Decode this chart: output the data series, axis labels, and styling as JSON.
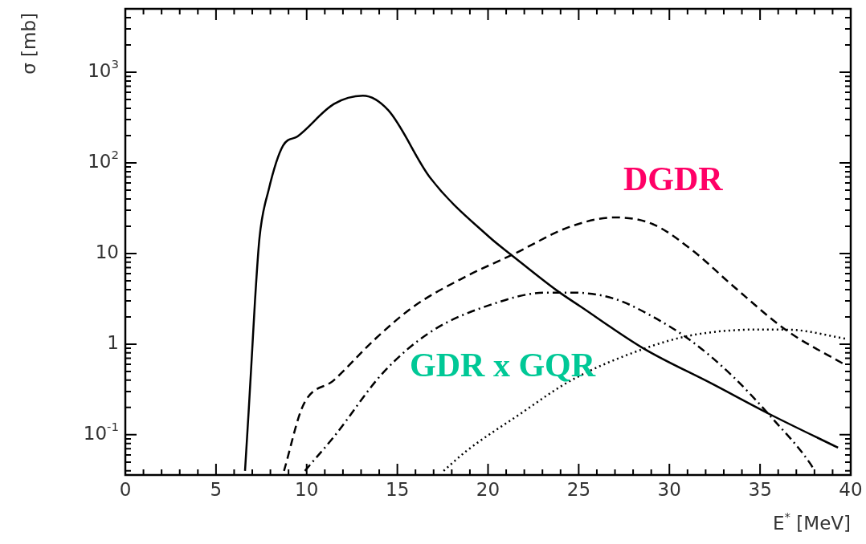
{
  "chart_data": {
    "type": "line",
    "xlabel": "E$^{*}$ [MeV]",
    "ylabel": "σ [mb]",
    "log": "y",
    "legend": false,
    "marker": "none",
    "xlim": [
      0,
      40
    ],
    "xticks": [
      0,
      {
        "value": 1,
        "label": null
      },
      {
        "value": 2,
        "label": null
      },
      {
        "value": 3,
        "label": null
      },
      {
        "value": 4,
        "label": null
      },
      5,
      {
        "value": 6,
        "label": null
      },
      {
        "value": 7,
        "label": null
      },
      {
        "value": 8,
        "label": null
      },
      {
        "value": 9,
        "label": null
      },
      10,
      {
        "value": 11,
        "label": null
      },
      {
        "value": 12,
        "label": null
      },
      {
        "value": 13,
        "label": null
      },
      {
        "value": 14,
        "label": null
      },
      15,
      {
        "value": 16,
        "label": null
      },
      {
        "value": 17,
        "label": null
      },
      {
        "value": 18,
        "label": null
      },
      {
        "value": 19,
        "label": null
      },
      20,
      {
        "value": 21,
        "label": null
      },
      {
        "value": 22,
        "label": null
      },
      {
        "value": 23,
        "label": null
      },
      {
        "value": 24,
        "label": null
      },
      25,
      {
        "value": 26,
        "label": null
      },
      {
        "value": 27,
        "label": null
      },
      {
        "value": 28,
        "label": null
      },
      {
        "value": 29,
        "label": null
      },
      30,
      {
        "value": 31,
        "label": null
      },
      {
        "value": 32,
        "label": null
      },
      {
        "value": 33,
        "label": null
      },
      {
        "value": 34,
        "label": null
      },
      35,
      {
        "value": 36,
        "label": null
      },
      {
        "value": 37,
        "label": null
      },
      {
        "value": 38,
        "label": null
      },
      {
        "value": 39,
        "label": null
      },
      40
    ],
    "ylim": [
      0.036,
      5000
    ],
    "yticks": [
      {
        "value": 0.04,
        "label": null
      },
      {
        "value": 0.05,
        "label": null
      },
      {
        "value": 0.06,
        "label": null
      },
      {
        "value": 0.07,
        "label": null
      },
      {
        "value": 0.08,
        "label": null
      },
      {
        "value": 0.09,
        "label": null
      },
      {
        "value": 0.1,
        "label": "10$^{-1}$"
      },
      {
        "value": 0.2,
        "label": null
      },
      {
        "value": 0.3,
        "label": null
      },
      {
        "value": 0.4,
        "label": null
      },
      {
        "value": 0.5,
        "label": null
      },
      {
        "value": 0.6,
        "label": null
      },
      {
        "value": 0.7,
        "label": null
      },
      {
        "value": 0.8,
        "label": null
      },
      {
        "value": 0.9,
        "label": null
      },
      1,
      {
        "value": 2,
        "label": null
      },
      {
        "value": 3,
        "label": null
      },
      {
        "value": 4,
        "label": null
      },
      {
        "value": 5,
        "label": null
      },
      {
        "value": 6,
        "label": null
      },
      {
        "value": 7,
        "label": null
      },
      {
        "value": 8,
        "label": null
      },
      {
        "value": 9,
        "label": null
      },
      10,
      {
        "value": 20,
        "label": null
      },
      {
        "value": 30,
        "label": null
      },
      {
        "value": 40,
        "label": null
      },
      {
        "value": 50,
        "label": null
      },
      {
        "value": 60,
        "label": null
      },
      {
        "value": 70,
        "label": null
      },
      {
        "value": 80,
        "label": null
      },
      {
        "value": 90,
        "label": null
      },
      {
        "value": 100,
        "label": "10$^{2}$"
      },
      {
        "value": 200,
        "label": null
      },
      {
        "value": 300,
        "label": null
      },
      {
        "value": 400,
        "label": null
      },
      {
        "value": 500,
        "label": null
      },
      {
        "value": 600,
        "label": null
      },
      {
        "value": 700,
        "label": null
      },
      {
        "value": 800,
        "label": null
      },
      {
        "value": 900,
        "label": null
      },
      {
        "value": 1000,
        "label": "10$^{3}$"
      },
      {
        "value": 2000,
        "label": null
      },
      {
        "value": 3000,
        "label": null
      },
      {
        "value": 4000,
        "label": null
      },
      {
        "value": 5000,
        "label": null
      }
    ],
    "series": [
      {
        "color": "#000000",
        "line_style": "solid",
        "x": [
          6.6,
          6.8,
          7.0,
          7.15,
          7.4,
          7.9,
          8.7,
          9.5,
          11.5,
          13.1,
          14.5,
          16.8,
          20.1,
          21.3,
          23.8,
          25.1,
          28.6,
          32.3,
          35.6,
          39.3
        ],
        "values": [
          0.04,
          0.18,
          0.89,
          3.0,
          15,
          50,
          155,
          196,
          445,
          550,
          380,
          69,
          15,
          9.6,
          3.9,
          2.6,
          0.89,
          0.37,
          0.166,
          0.072
        ]
      },
      {
        "color": "#000000",
        "line_style": "dashed",
        "x": [
          8.75,
          9.8,
          11.5,
          13.8,
          15.9,
          18.8,
          21.3,
          24.6,
          27.0,
          29.1,
          31.3,
          33.5,
          36.5,
          39.7
        ],
        "values": [
          0.04,
          0.21,
          0.4,
          1.15,
          2.6,
          5.6,
          9.6,
          20,
          25,
          21,
          10.7,
          4.4,
          1.4,
          0.59
        ]
      },
      {
        "color": "#000000",
        "line_style": "dashdot",
        "x": [
          9.9,
          11.5,
          14.2,
          16.8,
          20.1,
          23.2,
          24.6,
          26.9,
          29.1,
          31.3,
          33.5,
          35.7,
          37.8,
          38.0
        ],
        "values": [
          0.04,
          0.095,
          0.48,
          1.35,
          2.7,
          3.7,
          3.7,
          3.2,
          2.0,
          1.05,
          0.44,
          0.15,
          0.047,
          0.04
        ]
      },
      {
        "color": "#000000",
        "line_style": "dotted",
        "x": [
          17.55,
          18.8,
          21.7,
          24.6,
          28.6,
          31.3,
          35.0,
          36.7,
          39.7
        ],
        "values": [
          0.04,
          0.066,
          0.166,
          0.4,
          0.89,
          1.26,
          1.45,
          1.44,
          1.15
        ]
      }
    ],
    "annotations": [
      "DGDR",
      "GDR x GQR"
    ]
  }
}
